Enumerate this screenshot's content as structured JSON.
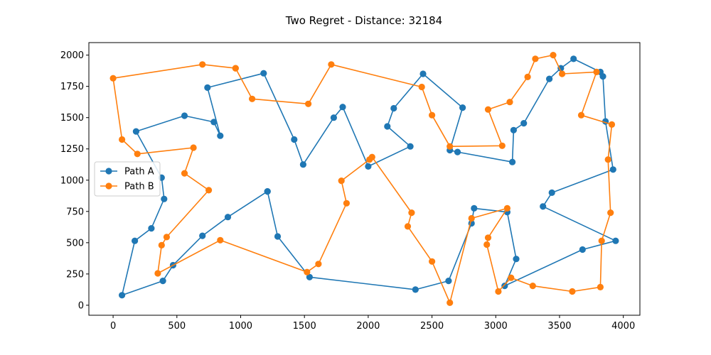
{
  "chart_data": {
    "type": "line",
    "title": "Two Regret - Distance: 32184",
    "xlabel": "",
    "ylabel": "",
    "xlim": [
      -190,
      4130
    ],
    "ylim": [
      -80,
      2100
    ],
    "xticks": [
      0,
      500,
      1000,
      1500,
      2000,
      2500,
      3000,
      3500,
      4000
    ],
    "yticks": [
      0,
      250,
      500,
      750,
      1000,
      1250,
      1500,
      1750,
      2000
    ],
    "grid": false,
    "legend_position": "center-left",
    "series": [
      {
        "name": "Path A",
        "color": "#1f77b4",
        "points": [
          [
            1210,
            910
          ],
          [
            900,
            705
          ],
          [
            700,
            555
          ],
          [
            470,
            320
          ],
          [
            390,
            195
          ],
          [
            70,
            80
          ],
          [
            170,
            515
          ],
          [
            300,
            615
          ],
          [
            400,
            850
          ],
          [
            380,
            1020
          ],
          [
            180,
            1390
          ],
          [
            560,
            1515
          ],
          [
            790,
            1465
          ],
          [
            840,
            1355
          ],
          [
            740,
            1740
          ],
          [
            1180,
            1855
          ],
          [
            1420,
            1325
          ],
          [
            1490,
            1125
          ],
          [
            1730,
            1500
          ],
          [
            1800,
            1585
          ],
          [
            2000,
            1110
          ],
          [
            2330,
            1270
          ],
          [
            2150,
            1430
          ],
          [
            2200,
            1575
          ],
          [
            2430,
            1850
          ],
          [
            2740,
            1580
          ],
          [
            2640,
            1240
          ],
          [
            2700,
            1225
          ],
          [
            3130,
            1145
          ],
          [
            3140,
            1400
          ],
          [
            3220,
            1455
          ],
          [
            3420,
            1810
          ],
          [
            3510,
            1895
          ],
          [
            3610,
            1970
          ],
          [
            3820,
            1865
          ],
          [
            3840,
            1830
          ],
          [
            3860,
            1470
          ],
          [
            3920,
            1085
          ],
          [
            3440,
            900
          ],
          [
            3370,
            790
          ],
          [
            3940,
            515
          ],
          [
            3680,
            445
          ],
          [
            3070,
            155
          ],
          [
            3160,
            370
          ],
          [
            3090,
            745
          ],
          [
            2830,
            775
          ],
          [
            2810,
            655
          ],
          [
            2630,
            195
          ],
          [
            2370,
            125
          ],
          [
            1540,
            225
          ],
          [
            1290,
            550
          ],
          [
            1210,
            910
          ]
        ]
      },
      {
        "name": "Path B",
        "color": "#ff7f0e",
        "points": [
          [
            960,
            1895
          ],
          [
            700,
            1925
          ],
          [
            0,
            1815
          ],
          [
            70,
            1325
          ],
          [
            190,
            1210
          ],
          [
            630,
            1260
          ],
          [
            560,
            1055
          ],
          [
            750,
            920
          ],
          [
            420,
            545
          ],
          [
            380,
            480
          ],
          [
            350,
            255
          ],
          [
            840,
            520
          ],
          [
            1520,
            265
          ],
          [
            1610,
            330
          ],
          [
            1830,
            815
          ],
          [
            1790,
            995
          ],
          [
            2010,
            1165
          ],
          [
            2030,
            1185
          ],
          [
            2340,
            740
          ],
          [
            2310,
            630
          ],
          [
            2500,
            350
          ],
          [
            2640,
            20
          ],
          [
            2810,
            695
          ],
          [
            3090,
            775
          ],
          [
            2940,
            540
          ],
          [
            2930,
            485
          ],
          [
            3020,
            110
          ],
          [
            3120,
            220
          ],
          [
            3290,
            155
          ],
          [
            3600,
            110
          ],
          [
            3820,
            145
          ],
          [
            3830,
            515
          ],
          [
            3900,
            740
          ],
          [
            3880,
            1165
          ],
          [
            3910,
            1445
          ],
          [
            3670,
            1520
          ],
          [
            3790,
            1865
          ],
          [
            3520,
            1850
          ],
          [
            3450,
            2000
          ],
          [
            3310,
            1970
          ],
          [
            3250,
            1825
          ],
          [
            3110,
            1625
          ],
          [
            2940,
            1565
          ],
          [
            3050,
            1275
          ],
          [
            2640,
            1270
          ],
          [
            2500,
            1520
          ],
          [
            2420,
            1745
          ],
          [
            1710,
            1925
          ],
          [
            1530,
            1610
          ],
          [
            1090,
            1650
          ],
          [
            960,
            1895
          ]
        ]
      }
    ]
  }
}
